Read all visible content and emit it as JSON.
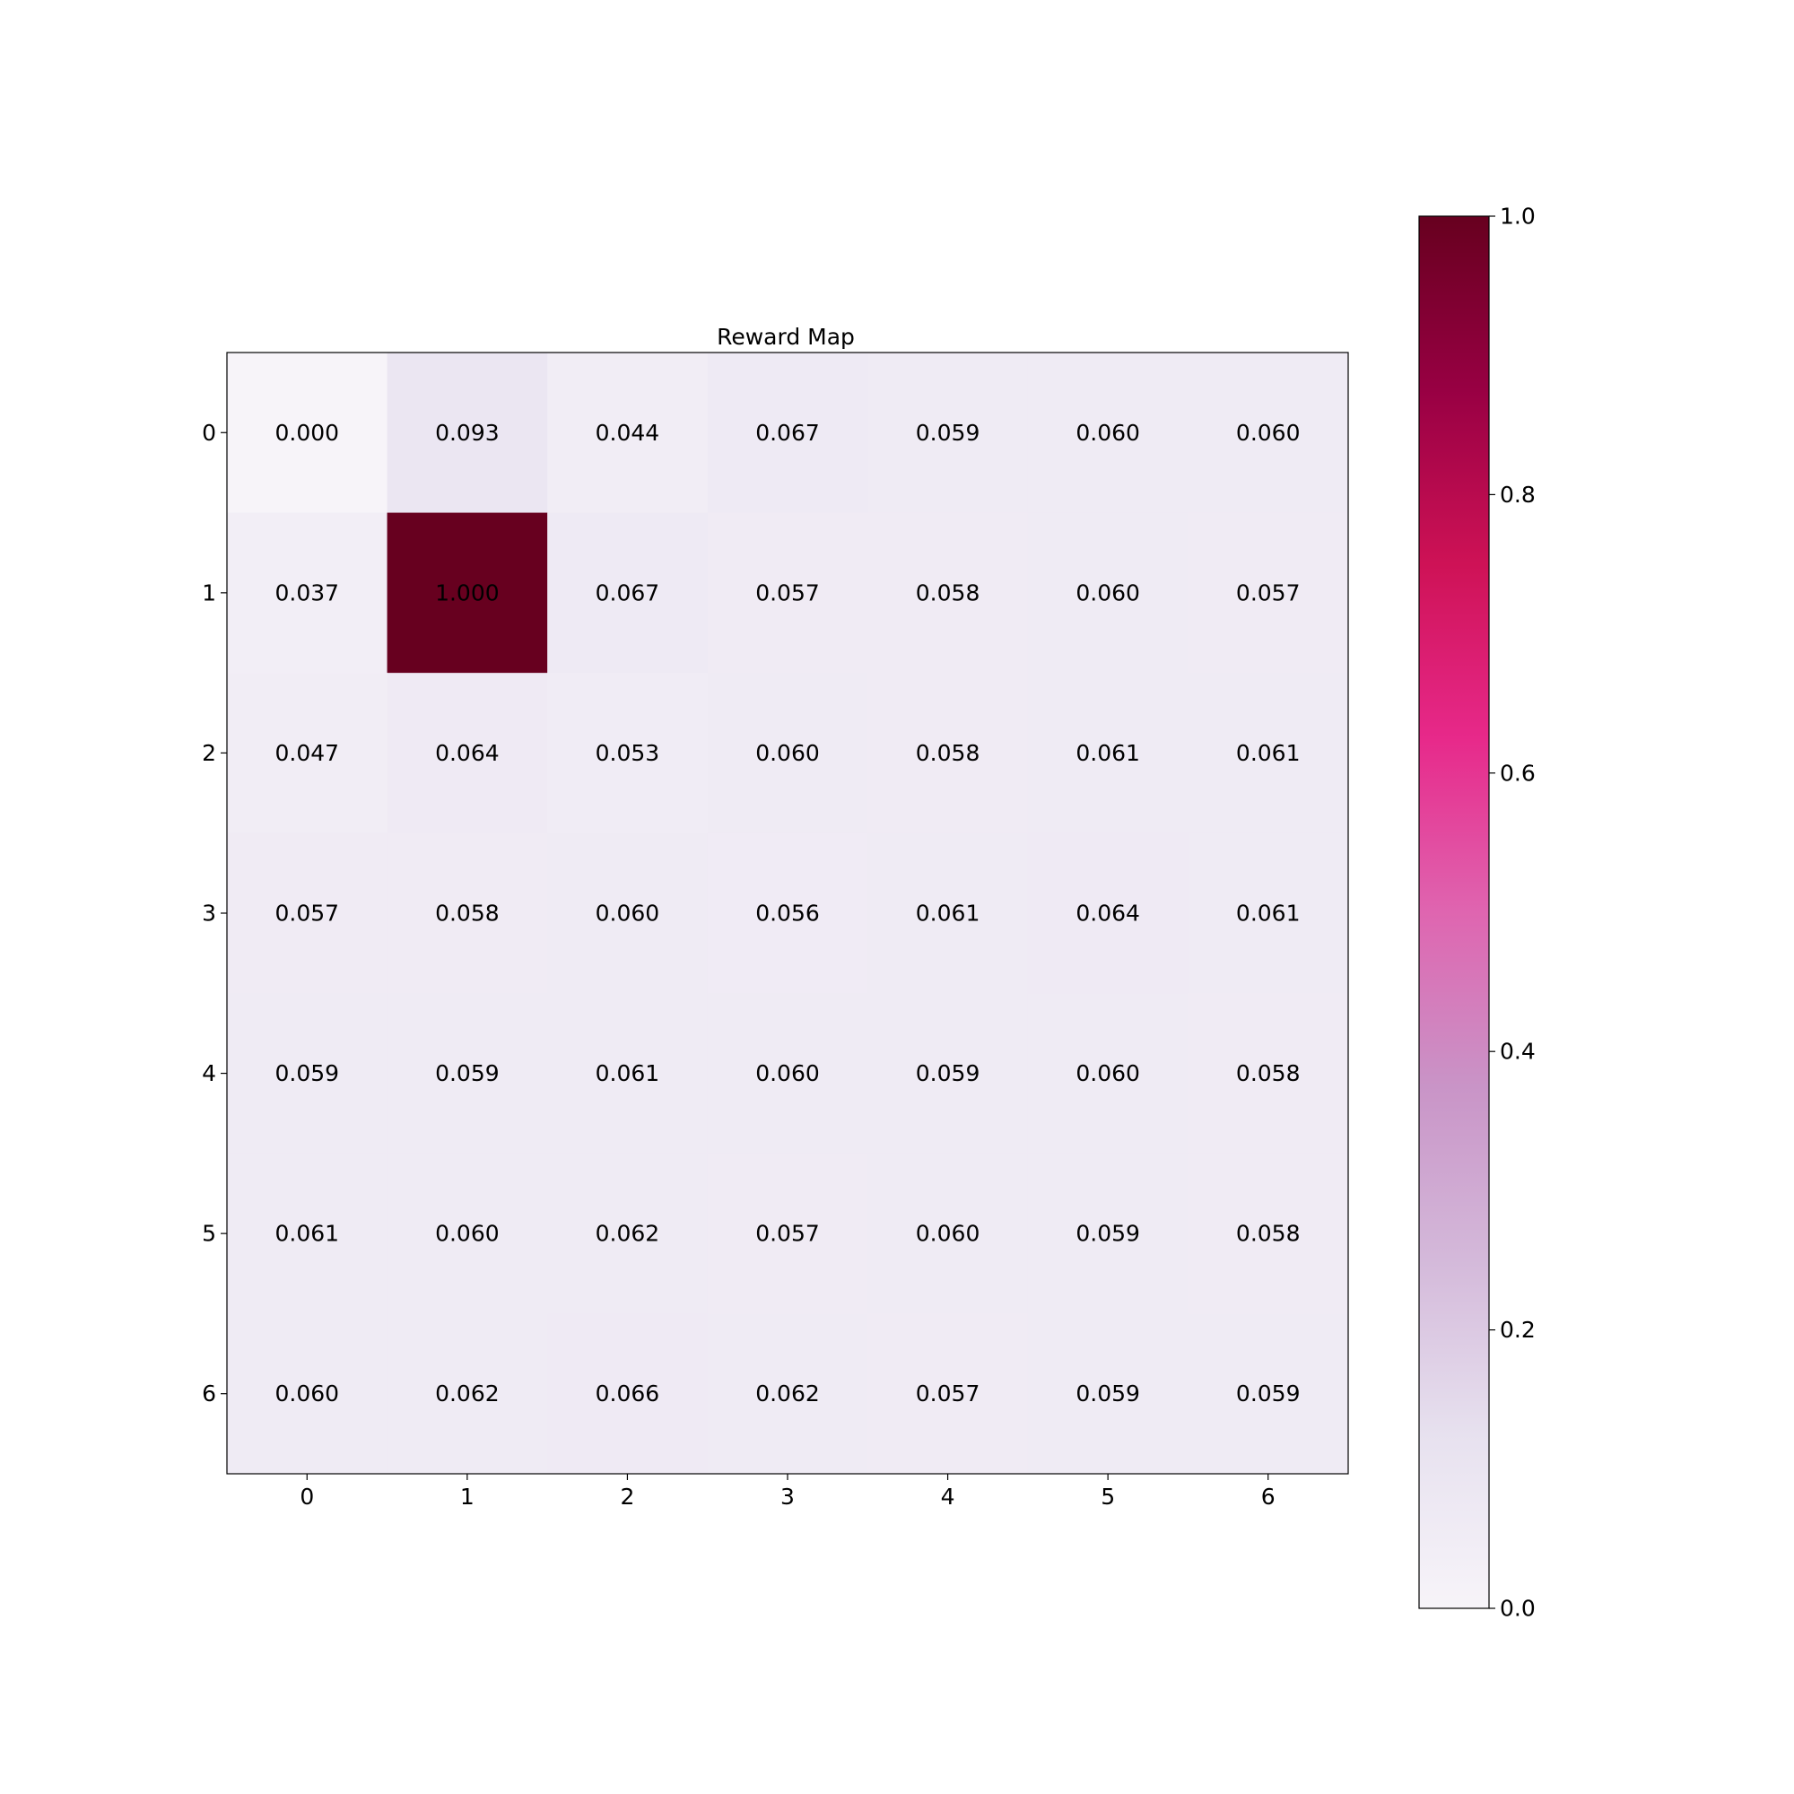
{
  "chart_data": {
    "type": "heatmap",
    "title": "Reward Map",
    "x_ticks": [
      "0",
      "1",
      "2",
      "3",
      "4",
      "5",
      "6"
    ],
    "y_ticks": [
      "0",
      "1",
      "2",
      "3",
      "4",
      "5",
      "6"
    ],
    "values": [
      [
        0.0,
        0.093,
        0.044,
        0.067,
        0.059,
        0.06,
        0.06
      ],
      [
        0.037,
        1.0,
        0.067,
        0.057,
        0.058,
        0.06,
        0.057
      ],
      [
        0.047,
        0.064,
        0.053,
        0.06,
        0.058,
        0.061,
        0.061
      ],
      [
        0.057,
        0.058,
        0.06,
        0.056,
        0.061,
        0.064,
        0.061
      ],
      [
        0.059,
        0.059,
        0.061,
        0.06,
        0.059,
        0.06,
        0.058
      ],
      [
        0.061,
        0.06,
        0.062,
        0.057,
        0.06,
        0.059,
        0.058
      ],
      [
        0.06,
        0.062,
        0.066,
        0.062,
        0.057,
        0.059,
        0.059
      ]
    ],
    "value_labels": [
      [
        "0.000",
        "0.093",
        "0.044",
        "0.067",
        "0.059",
        "0.060",
        "0.060"
      ],
      [
        "0.037",
        "1.000",
        "0.067",
        "0.057",
        "0.058",
        "0.060",
        "0.057"
      ],
      [
        "0.047",
        "0.064",
        "0.053",
        "0.060",
        "0.058",
        "0.061",
        "0.061"
      ],
      [
        "0.057",
        "0.058",
        "0.060",
        "0.056",
        "0.061",
        "0.064",
        "0.061"
      ],
      [
        "0.059",
        "0.059",
        "0.061",
        "0.060",
        "0.059",
        "0.060",
        "0.058"
      ],
      [
        "0.061",
        "0.060",
        "0.062",
        "0.057",
        "0.060",
        "0.059",
        "0.058"
      ],
      [
        "0.060",
        "0.062",
        "0.066",
        "0.062",
        "0.057",
        "0.059",
        "0.059"
      ]
    ],
    "colorbar": {
      "range": [
        0.0,
        1.0
      ],
      "ticks": [
        "0.0",
        "0.2",
        "0.4",
        "0.6",
        "0.8",
        "1.0"
      ],
      "colormap": "PuRd",
      "stops": [
        "#f7f4f9",
        "#e7e1ef",
        "#d4b9da",
        "#c994c7",
        "#df65b0",
        "#e7298a",
        "#ce1256",
        "#980043",
        "#67001f"
      ]
    },
    "grid": false
  }
}
